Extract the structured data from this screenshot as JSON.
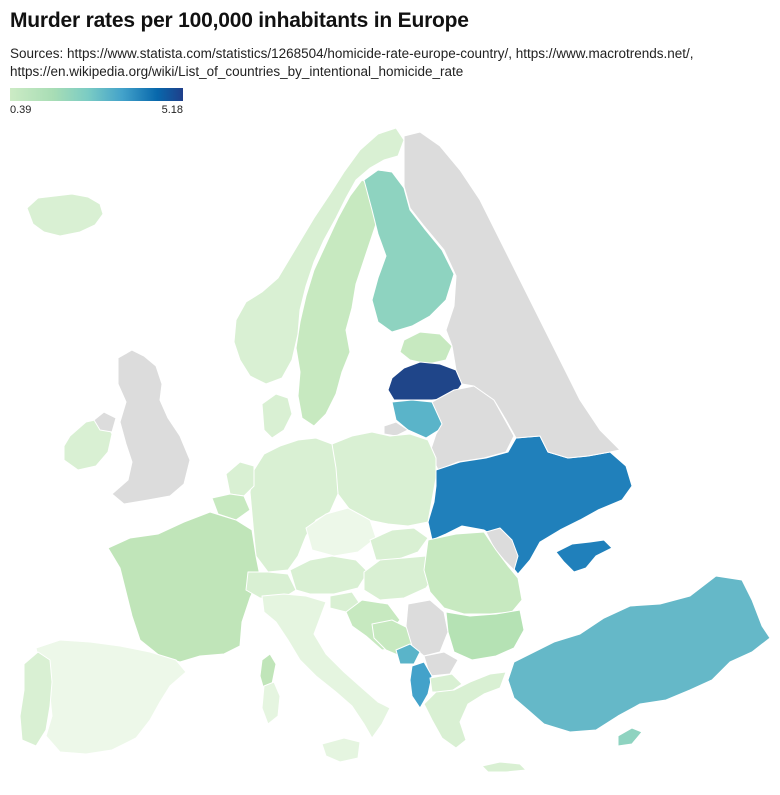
{
  "title": "Murder rates per 100,000 inhabitants in Europe",
  "sources": "Sources: https://www.statista.com/statistics/1268504/homicide-rate-europe-country/, https://www.macrotrends.net/, https://en.wikipedia.org/wiki/List_of_countries_by_intentional_homicide_rate",
  "legend": {
    "min": "0.39",
    "max": "5.18"
  },
  "colors": {
    "no_data": "#dcdcdc",
    "scale": [
      "#ccebc5",
      "#a8ddb5",
      "#7bccc4",
      "#43a2ca",
      "#0868ac",
      "#1f3f8a"
    ]
  },
  "map": {
    "regions": [
      {
        "id": "iceland",
        "rate_level": "low"
      },
      {
        "id": "ireland",
        "rate_level": "low"
      },
      {
        "id": "united-kingdom",
        "rate_level": "no-data"
      },
      {
        "id": "norway",
        "rate_level": "low"
      },
      {
        "id": "sweden",
        "rate_level": "low"
      },
      {
        "id": "finland",
        "rate_level": "medium"
      },
      {
        "id": "estonia",
        "rate_level": "low"
      },
      {
        "id": "latvia",
        "rate_level": "highest"
      },
      {
        "id": "lithuania",
        "rate_level": "medium-high"
      },
      {
        "id": "belarus",
        "rate_level": "no-data"
      },
      {
        "id": "ukraine",
        "rate_level": "high"
      },
      {
        "id": "moldova",
        "rate_level": "no-data"
      },
      {
        "id": "turkey",
        "rate_level": "medium-high"
      },
      {
        "id": "serbia",
        "rate_level": "no-data"
      },
      {
        "id": "montenegro",
        "rate_level": "medium-high"
      }
    ]
  }
}
